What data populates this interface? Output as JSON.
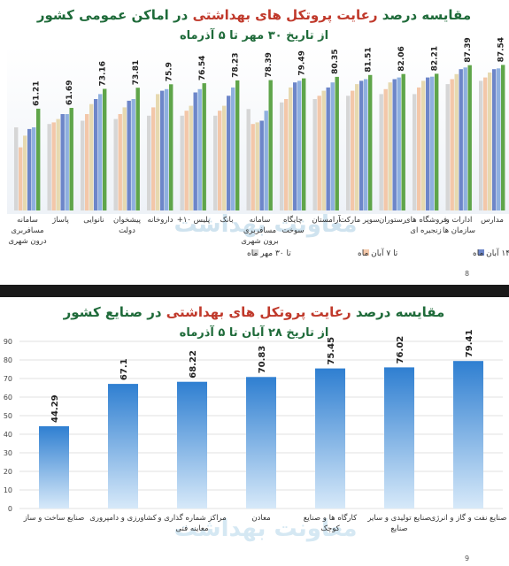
{
  "chart_data": [
    {
      "type": "bar",
      "title_parts": [
        "مقایسه درصد ",
        "رعایت پروتکل های بهداشتی",
        " در اماکن عمومی کشور"
      ],
      "subtitle": "از تاریخ ۳۰ مهر تا ۵ آذرماه",
      "ylim": [
        0,
        100
      ],
      "grid": false,
      "legend_position": "bottom",
      "page_number": "8",
      "watermark": "معاونت بهداشت",
      "categories": [
        "مدارس",
        "ادارات و سازمان ها",
        "فروشگاه های زنجیره ای",
        "رستوران",
        "سوپر مارکت",
        "آرامستان",
        "چایگاه سوخت",
        "سامانه مسافربری برون شهری",
        "بانک",
        "پلیس ۱۰+",
        "داروخانه",
        "پیشخوان دولت",
        "نانوایی",
        "پاساژ",
        "سامانه مسافربری درون شهری"
      ],
      "series": [
        {
          "name": "تا ۳۰ مهر ماه",
          "color": "#d6d6d6",
          "values": [
            78,
            76,
            70,
            70,
            69,
            67,
            65,
            61,
            57,
            57,
            57,
            55,
            54,
            52,
            50
          ]
        },
        {
          "name": "تا ۷ آبان ماه",
          "color": "#f3c7a9",
          "values": [
            80,
            79,
            74,
            73,
            72,
            69,
            67,
            52,
            60,
            60,
            62,
            58,
            58,
            53,
            38
          ]
        },
        {
          "name": "تا ۱۴ آبان ماه",
          "color": "#e6d9b0",
          "values": [
            83,
            82,
            78,
            77,
            76,
            72,
            74,
            53,
            63,
            63,
            70,
            62,
            64,
            55,
            45
          ]
        },
        {
          "name": "",
          "color": "#6d86c9",
          "values": [
            85,
            85,
            80,
            79,
            78,
            74,
            77,
            54,
            69,
            71,
            72,
            66,
            67,
            58,
            49
          ]
        },
        {
          "name": "",
          "color": "#8fb0df",
          "values": [
            85.5,
            86,
            80.5,
            80,
            79,
            77,
            78,
            60,
            74,
            73,
            73,
            67,
            70,
            58,
            50
          ]
        },
        {
          "name": "",
          "color": "#5fa54a",
          "values": [
            87.54,
            87.39,
            82.21,
            82.06,
            81.51,
            80.35,
            79.49,
            78.39,
            78.23,
            76.54,
            75.9,
            73.81,
            73.16,
            61.69,
            61.21
          ]
        }
      ],
      "value_labels": [
        "87.54",
        "87.39",
        "82.21",
        "82.06",
        "81.51",
        "80.35",
        "79.49",
        "78.39",
        "78.23",
        "76.54",
        "75.9",
        "73.81",
        "73.16",
        "61.69",
        "61.21"
      ],
      "category_lines": [
        [
          "مدارس"
        ],
        [
          "ادارات و",
          "سازمان ها"
        ],
        [
          "فروشگاه های",
          "زنجیره ای"
        ],
        [
          "رستوران"
        ],
        [
          "سوپر مارکت"
        ],
        [
          "آرامستان"
        ],
        [
          "چایگاه",
          "سوخت"
        ],
        [
          "سامانه",
          "مسافربری",
          "برون شهری"
        ],
        [
          "بانک"
        ],
        [
          "پلیس ۱۰+"
        ],
        [
          "داروخانه"
        ],
        [
          "پیشخوان",
          "دولت"
        ],
        [
          "نانوایی"
        ],
        [
          "پاساژ"
        ],
        [
          "سامانه",
          "مسافربری",
          "درون شهری"
        ]
      ]
    },
    {
      "type": "bar",
      "title_parts": [
        "مقایسه درصد ",
        "رعایت پروتکل های بهداشتی",
        " در صنایع کشور"
      ],
      "subtitle": "از تاریخ ۲۸ آبان تا ۵ آذرماه",
      "ylim": [
        0,
        90
      ],
      "yticks": [
        0,
        10,
        20,
        30,
        40,
        50,
        60,
        70,
        80,
        90
      ],
      "grid": true,
      "page_number": "9",
      "watermark": "معاونت بهداشت",
      "categories": [
        "صنایع نفت و گاز و انرژی",
        "صنایع تولیدی و سایر صنایع",
        "کارگاه ها و صنایع کوچک",
        "معادن",
        "مراکز شماره گذاری و معاینه فنی",
        "کشاورزی و دامپروری",
        "صنایع ساخت و ساز"
      ],
      "values": [
        79.41,
        76.02,
        75.45,
        70.83,
        68.22,
        67.1,
        44.29
      ],
      "value_labels": [
        "79.41",
        "76.02",
        "75.45",
        "70.83",
        "68.22",
        "67.1",
        "44.29"
      ],
      "category_lines": [
        [
          "صنایع نفت و گاز و انرژی"
        ],
        [
          "صنایع تولیدی و سایر",
          "صنایع"
        ],
        [
          "کارگاه ها و صنایع",
          "کوچک"
        ],
        [
          "معادن"
        ],
        [
          "مراکز شماره گذاری و",
          "معاینه فنی"
        ],
        [
          "کشاورزی و دامپروری"
        ],
        [
          "صنایع ساخت و ساز"
        ]
      ]
    }
  ]
}
